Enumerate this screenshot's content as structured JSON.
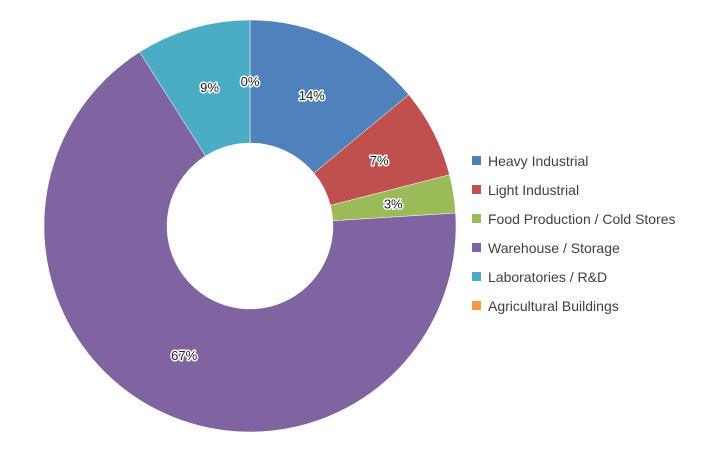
{
  "chart_data": {
    "type": "pie",
    "variant": "donut",
    "categories": [
      "Heavy Industrial",
      "Light Industrial",
      "Food Production / Cold Stores",
      "Warehouse / Storage",
      "Laboratories / R&D",
      "Agricultural Buildings"
    ],
    "values": [
      14,
      7,
      3,
      67,
      9,
      0
    ],
    "data_labels": [
      "14%",
      "7%",
      "3%",
      "67%",
      "9%",
      "0%"
    ],
    "colors": [
      "#4F81BD",
      "#C0504D",
      "#9BBB59",
      "#8064A2",
      "#4BACC6",
      "#F79646"
    ],
    "legend_position": "right",
    "start_angle_deg": 0,
    "direction": "clockwise"
  }
}
